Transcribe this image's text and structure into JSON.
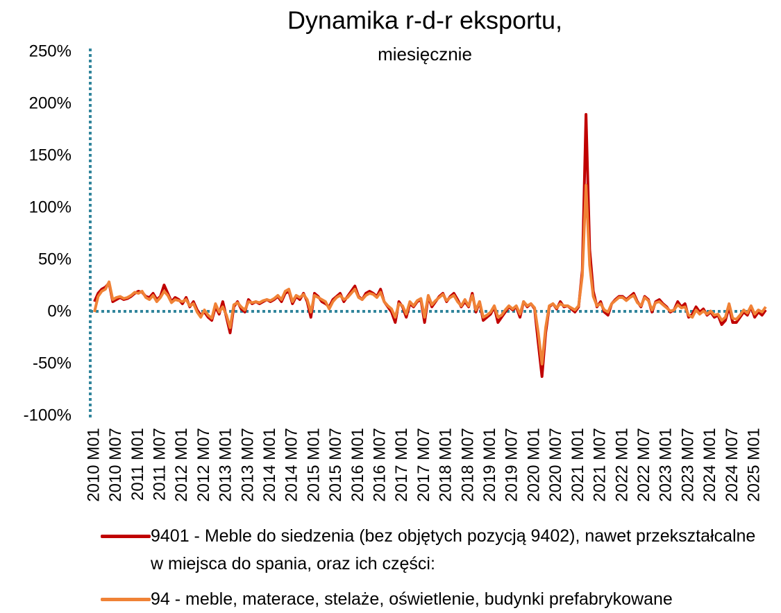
{
  "chart_data": {
    "type": "line",
    "title": "Dynamika r-d-r eksportu,",
    "subtitle": "miesięcznie",
    "categories": [
      "2010 M01",
      null,
      null,
      null,
      null,
      null,
      "2010 M07",
      null,
      null,
      null,
      null,
      null,
      "2011 M01",
      null,
      null,
      null,
      null,
      null,
      "2011 M07",
      null,
      null,
      null,
      null,
      null,
      "2012 M01",
      null,
      null,
      null,
      null,
      null,
      "2012 M07",
      null,
      null,
      null,
      null,
      null,
      "2013 M01",
      null,
      null,
      null,
      null,
      null,
      "2013 M07",
      null,
      null,
      null,
      null,
      null,
      "2014 M01",
      null,
      null,
      null,
      null,
      null,
      "2014 M07",
      null,
      null,
      null,
      null,
      null,
      "2015 M01",
      null,
      null,
      null,
      null,
      null,
      "2015 M07",
      null,
      null,
      null,
      null,
      null,
      "2016 M01",
      null,
      null,
      null,
      null,
      null,
      "2016 M07",
      null,
      null,
      null,
      null,
      null,
      "2017 M01",
      null,
      null,
      null,
      null,
      null,
      "2017 M07",
      null,
      null,
      null,
      null,
      null,
      "2018 M01",
      null,
      null,
      null,
      null,
      null,
      "2018 M07",
      null,
      null,
      null,
      null,
      null,
      "2019 M01",
      null,
      null,
      null,
      null,
      null,
      "2019 M07",
      null,
      null,
      null,
      null,
      null,
      "2020 M01",
      null,
      null,
      null,
      null,
      null,
      "2020 M07",
      null,
      null,
      null,
      null,
      null,
      "2021 M01",
      null,
      null,
      null,
      null,
      null,
      "2021 M07",
      null,
      null,
      null,
      null,
      null,
      "2022 M01",
      null,
      null,
      null,
      null,
      null,
      "2022 M07",
      null,
      null,
      null,
      null,
      null,
      "2023 M01",
      null,
      null,
      null,
      null,
      null,
      "2023 M07",
      null,
      null,
      null,
      null,
      null,
      "2024 M01",
      null,
      null,
      null,
      null,
      null,
      "2024 M07",
      null,
      null,
      null,
      null,
      null,
      "2025 M01",
      null,
      null,
      null
    ],
    "series": [
      {
        "name": "9401 - Meble do siedzenia (bez objętych pozycją 9402), nawet przekształcalne w miejsca do spania, oraz ich części:",
        "color": "#c00000",
        "values": [
          10,
          18,
          22,
          24,
          28,
          10,
          12,
          14,
          12,
          13,
          15,
          18,
          20,
          19,
          15,
          14,
          18,
          12,
          15,
          26,
          18,
          10,
          14,
          12,
          8,
          14,
          5,
          10,
          2,
          -3,
          0,
          -5,
          -8,
          5,
          -2,
          10,
          -5,
          -20,
          5,
          10,
          3,
          0,
          12,
          8,
          10,
          8,
          10,
          12,
          10,
          12,
          15,
          10,
          18,
          20,
          8,
          15,
          12,
          18,
          10,
          -5,
          18,
          15,
          10,
          8,
          5,
          12,
          15,
          18,
          10,
          15,
          20,
          25,
          15,
          12,
          18,
          20,
          18,
          15,
          22,
          10,
          5,
          0,
          -10,
          10,
          5,
          -5,
          8,
          5,
          10,
          12,
          -10,
          15,
          5,
          10,
          15,
          18,
          10,
          15,
          18,
          12,
          5,
          10,
          5,
          18,
          0,
          10,
          -8,
          -5,
          -2,
          5,
          -10,
          -5,
          0,
          5,
          2,
          5,
          -5,
          10,
          5,
          8,
          3,
          -30,
          -62,
          -20,
          5,
          8,
          3,
          10,
          5,
          6,
          3,
          0,
          5,
          40,
          190,
          60,
          20,
          5,
          10,
          0,
          -3,
          8,
          12,
          15,
          15,
          12,
          15,
          18,
          10,
          5,
          15,
          12,
          0,
          10,
          12,
          8,
          5,
          0,
          2,
          10,
          5,
          8,
          -5,
          -2,
          5,
          0,
          3,
          -3,
          0,
          -5,
          -3,
          -12,
          -8,
          5,
          -10,
          -10,
          -5,
          0,
          -3,
          5,
          -5,
          0,
          -3,
          2
        ]
      },
      {
        "name": "94 - meble, materace, stelaże, oświetlenie, budynki prefabrykowane",
        "color": "#f08236",
        "values": [
          0,
          15,
          20,
          22,
          29,
          12,
          14,
          15,
          13,
          14,
          16,
          19,
          18,
          20,
          14,
          12,
          16,
          10,
          14,
          20,
          16,
          9,
          12,
          11,
          10,
          12,
          6,
          8,
          0,
          -5,
          2,
          -3,
          -6,
          8,
          0,
          5,
          -3,
          -15,
          7,
          9,
          5,
          2,
          10,
          9,
          10,
          9,
          11,
          12,
          11,
          13,
          16,
          12,
          20,
          22,
          10,
          16,
          14,
          17,
          12,
          0,
          16,
          14,
          12,
          10,
          3,
          10,
          14,
          16,
          12,
          14,
          18,
          22,
          14,
          12,
          16,
          18,
          17,
          14,
          19,
          10,
          6,
          3,
          -5,
          8,
          6,
          -2,
          10,
          6,
          11,
          13,
          -5,
          16,
          7,
          11,
          14,
          17,
          11,
          14,
          16,
          10,
          6,
          12,
          6,
          16,
          2,
          10,
          -5,
          -3,
          0,
          6,
          -5,
          -3,
          2,
          6,
          3,
          6,
          -2,
          10,
          6,
          8,
          4,
          -20,
          -50,
          -15,
          6,
          8,
          4,
          8,
          6,
          6,
          4,
          2,
          6,
          35,
          122,
          45,
          15,
          6,
          8,
          2,
          0,
          8,
          11,
          14,
          14,
          11,
          14,
          16,
          9,
          6,
          14,
          11,
          2,
          9,
          10,
          7,
          4,
          1,
          2,
          7,
          4,
          5,
          -3,
          -5,
          2,
          -2,
          1,
          -2,
          1,
          -3,
          -2,
          -8,
          -5,
          8,
          -6,
          -7,
          -3,
          2,
          -1,
          6,
          -2,
          2,
          0,
          5
        ]
      }
    ],
    "ylim": [
      -100,
      250
    ],
    "yticks": [
      {
        "value": -100,
        "label": "-100%"
      },
      {
        "value": -50,
        "label": "-50%"
      },
      {
        "value": 0,
        "label": "0%"
      },
      {
        "value": 50,
        "label": "50%"
      },
      {
        "value": 100,
        "label": "100%"
      },
      {
        "value": 150,
        "label": "150%"
      },
      {
        "value": 200,
        "label": "200%"
      },
      {
        "value": 250,
        "label": "250%"
      }
    ]
  }
}
